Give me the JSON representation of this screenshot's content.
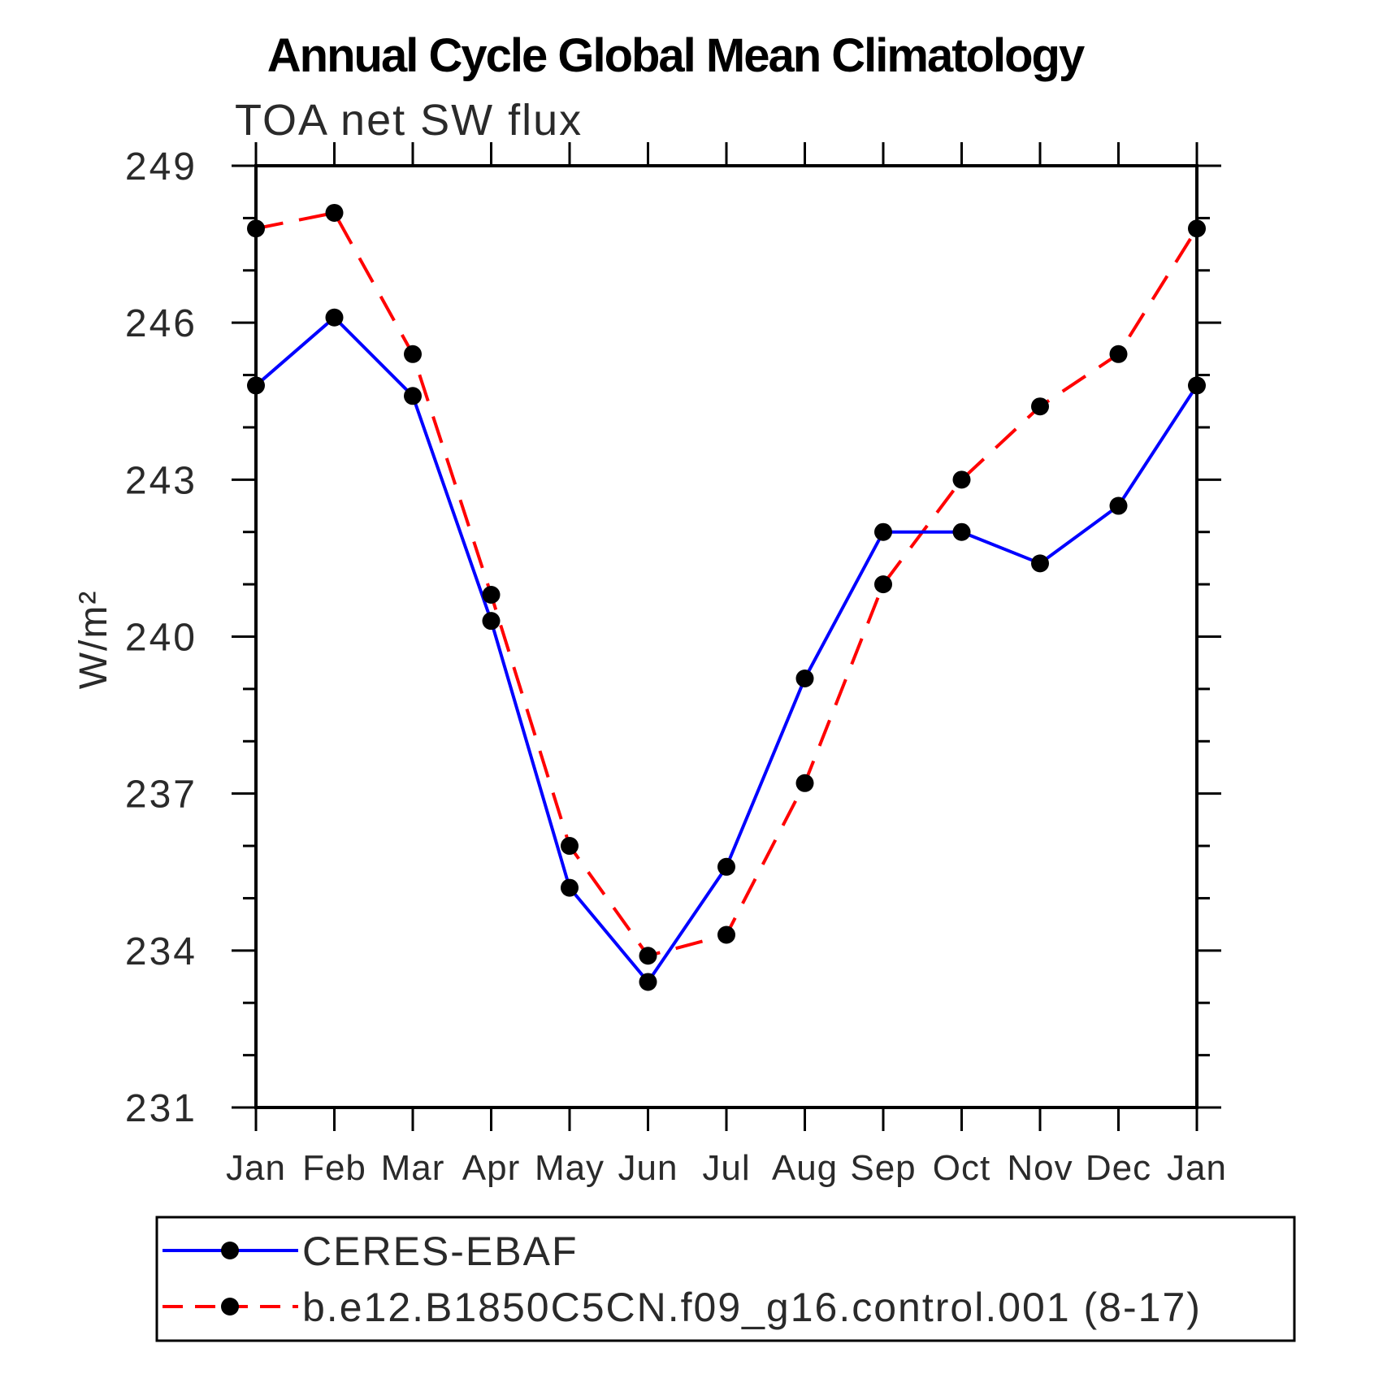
{
  "title": "Annual Cycle Global Mean Climatology",
  "chart_data": {
    "type": "line",
    "title": "Annual Cycle Global Mean Climatology",
    "subtitle": "TOA net SW flux",
    "xlabel": "",
    "ylabel": "W/m²",
    "categories": [
      "Jan",
      "Feb",
      "Mar",
      "Apr",
      "May",
      "Jun",
      "Jul",
      "Aug",
      "Sep",
      "Oct",
      "Nov",
      "Dec",
      "Jan"
    ],
    "ylim": [
      231,
      249
    ],
    "yticks": [
      231,
      234,
      237,
      240,
      243,
      246,
      249
    ],
    "minor_ytick_step": 1,
    "grid": false,
    "legend_position": "bottom-left",
    "marker": "filled-circle",
    "marker_color": "#000000",
    "axis_color": "#000000",
    "background_color": "#ffffff",
    "series": [
      {
        "name": "CERES-EBAF",
        "color": "#0000ff",
        "line_style": "solid",
        "values": [
          244.8,
          246.1,
          244.6,
          240.3,
          235.2,
          233.4,
          235.6,
          239.2,
          242.0,
          242.0,
          241.4,
          242.5,
          244.8
        ]
      },
      {
        "name": "b.e12.B1850C5CN.f09_g16.control.001 (8-17)",
        "color": "#ff0000",
        "line_style": "dashed",
        "values": [
          247.8,
          248.1,
          245.4,
          240.8,
          236.0,
          233.9,
          234.3,
          237.2,
          241.0,
          243.0,
          244.4,
          245.4,
          247.8
        ]
      }
    ]
  }
}
